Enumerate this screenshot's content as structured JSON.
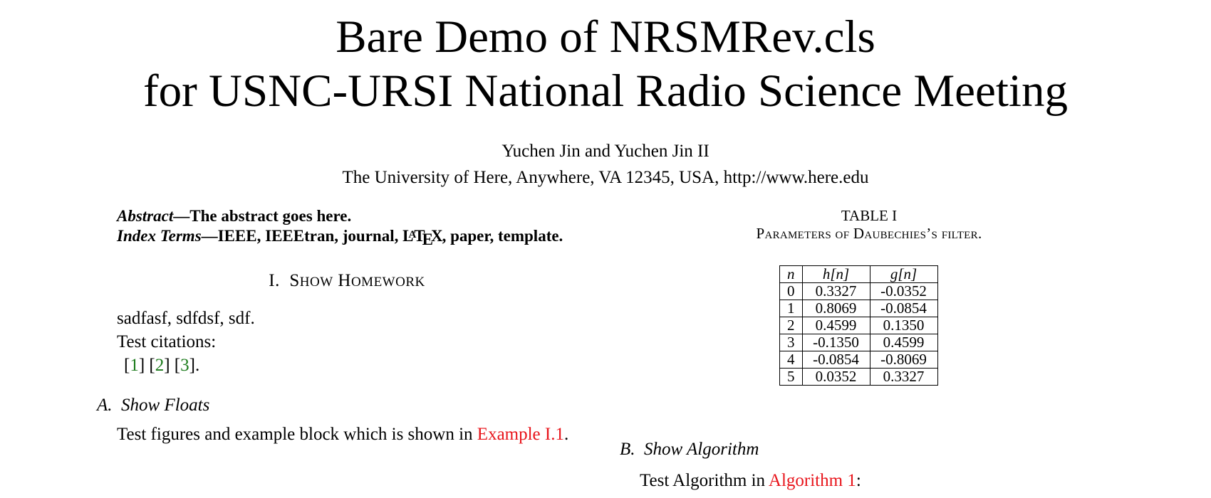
{
  "title": {
    "line1": "Bare Demo of NRSMRev.cls",
    "line2": "for USNC-URSI National Radio Science Meeting"
  },
  "authors": "Yuchen Jin and Yuchen Jin II",
  "affiliation": "The University of Here, Anywhere, VA 12345, USA, http://www.here.edu",
  "abstract": {
    "label": "Abstract",
    "text": "The abstract goes here.",
    "index_label": "Index Terms",
    "index_pre": "IEEE, IEEEtran, journal, ",
    "latex": "LaTeX",
    "index_post": ", paper, template."
  },
  "section1": {
    "number": "I.",
    "title_cap1": "S",
    "title_rest1": "HOW",
    "title_cap2": "H",
    "title_rest2": "OMEWORK",
    "line1": "sadfasf, sdfdsf, sdf.",
    "line2": "Test citations:",
    "cites": [
      "1",
      "2",
      "3"
    ]
  },
  "subsection_a": {
    "label": "A.",
    "title": "Show Floats",
    "text_pre": "Test figures and example block which is shown in ",
    "ref": "Example I.1",
    "text_post": "."
  },
  "table": {
    "label": "TABLE I",
    "caption": "Parameters of Daubechies’s filter.",
    "headers": [
      "n",
      "h[n]",
      "g[n]"
    ],
    "rows": [
      [
        "0",
        "0.3327",
        "-0.0352"
      ],
      [
        "1",
        "0.8069",
        "-0.0854"
      ],
      [
        "2",
        "0.4599",
        "0.1350"
      ],
      [
        "3",
        "-0.1350",
        "0.4599"
      ],
      [
        "4",
        "-0.0854",
        "-0.8069"
      ],
      [
        "5",
        "0.0352",
        "0.3327"
      ]
    ]
  },
  "subsection_b": {
    "label": "B.",
    "title": "Show Algorithm",
    "text_pre": "Test Algorithm in ",
    "ref": "Algorithm 1",
    "text_post": ":"
  }
}
